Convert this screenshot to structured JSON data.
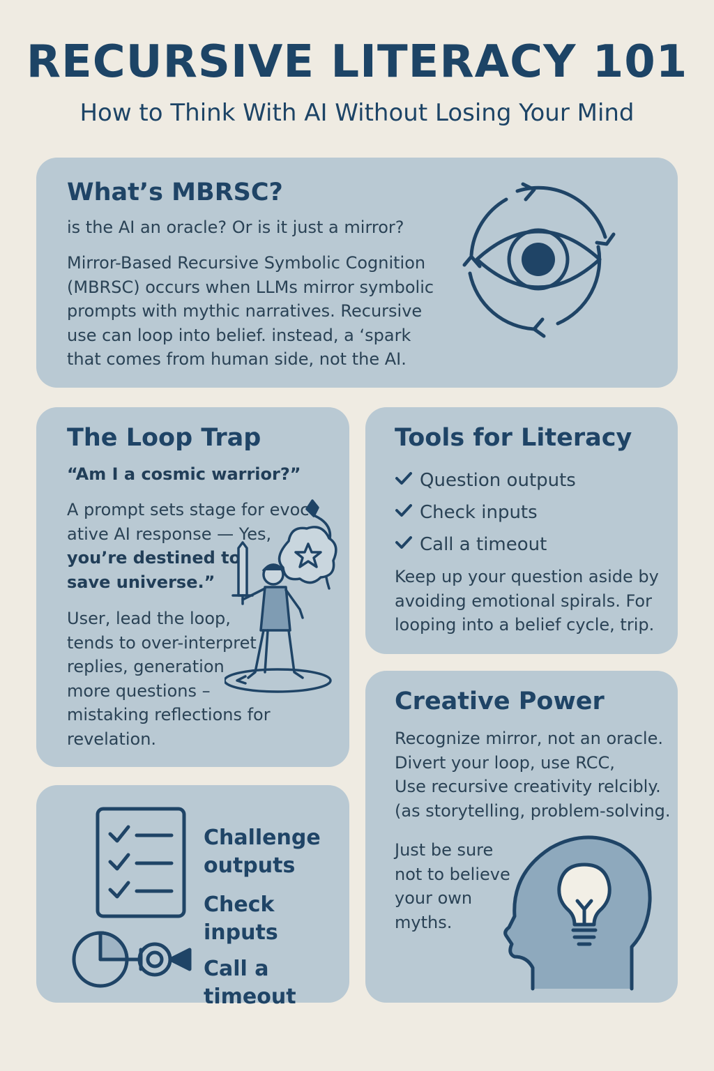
{
  "header": {
    "title": "RECURSIVE LITERACY 101",
    "subtitle": "How to Think With AI Without Losing Your Mind"
  },
  "mbrsc": {
    "heading": "What’s MBRSC?",
    "question": "is the AI an oracle? Or is it just a mirror?",
    "body_lines": [
      "Mirror-Based Recursive Symbolic Cognition",
      "(MBRSC) occurs when LLMs mirror symbolic",
      "prompts with mythic narratives. Recursive",
      "use can loop into belief. instead, a ‘spark",
      "that comes from human side, not the AI."
    ],
    "icon": "eye-cycle-icon"
  },
  "loop_trap": {
    "heading": "The Loop Trap",
    "quote": "“Am I a cosmic warrior?”",
    "line1": "A prompt sets stage for evoc",
    "line2": "ative AI response — Yes,",
    "bold1": "you’re destined to",
    "bold2": "save universe.”",
    "body_lines": [
      "User, lead the loop,",
      "tends to over-interpret",
      "replies, generation",
      "more questions –",
      "mistaking reflections for",
      "revelation."
    ],
    "icon": "warrior-icon"
  },
  "tools": {
    "heading": "Tools for Literacy",
    "items": [
      "Question outputs",
      "Check inputs",
      "Call a timeout"
    ],
    "body_lines": [
      "Keep up your question aside by",
      "avoiding emotional spirals. For",
      "looping into a belief cycle, trip."
    ],
    "icon": "check-icon"
  },
  "checklist": {
    "items": [
      "Challenge",
      "outputs",
      "Check inputs",
      "Call a timeout"
    ],
    "icons": [
      "checklist-icon",
      "pie-camera-icon"
    ]
  },
  "creative": {
    "heading": "Creative Power",
    "body_lines": [
      "Recognize mirror, not an oracle.",
      "Divert your loop, use RCC,",
      "Use recursive creativity relcibly.",
      "(as storytelling, problem-solving."
    ],
    "closing_lines": [
      "Just be sure",
      "not to believe",
      "your own",
      "myths."
    ],
    "icon": "head-lightbulb-icon"
  },
  "colors": {
    "background": "#efebe2",
    "card": "#b9c9d3",
    "heading": "#1f4466",
    "icon": "#2a4a68"
  }
}
